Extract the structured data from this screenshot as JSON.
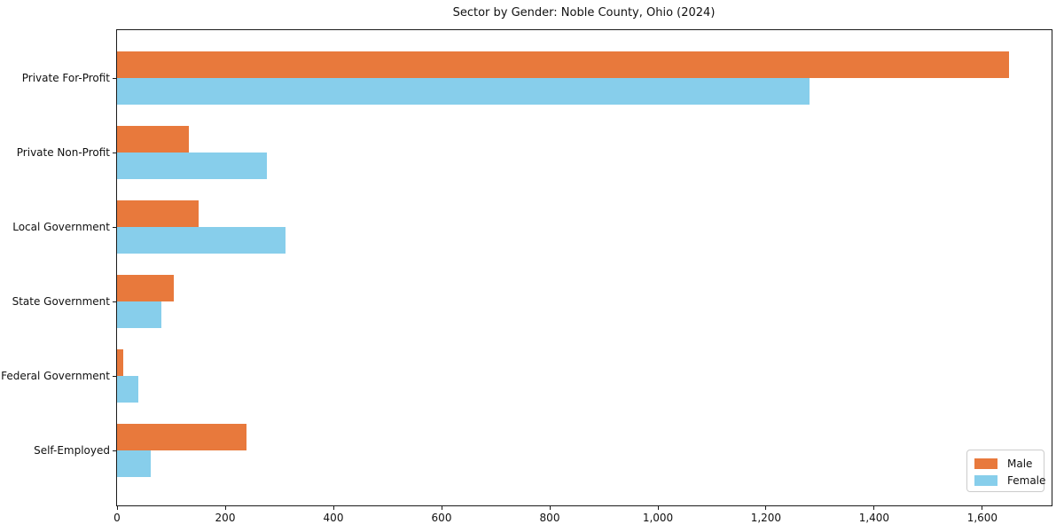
{
  "chart_data": {
    "type": "bar",
    "orientation": "horizontal",
    "title": "Sector by Gender: Noble County, Ohio (2024)",
    "categories": [
      "Private For-Profit",
      "Private Non-Profit",
      "Local Government",
      "State Government",
      "Federal Government",
      "Self-Employed"
    ],
    "series": [
      {
        "name": "Male",
        "color": "#e8793c",
        "values": [
          1650,
          133,
          150,
          105,
          12,
          240
        ]
      },
      {
        "name": "Female",
        "color": "#87ceeb",
        "values": [
          1280,
          277,
          311,
          82,
          40,
          62
        ]
      }
    ],
    "xlim": [
      0,
      1728
    ],
    "xticks": [
      0,
      200,
      400,
      600,
      800,
      1000,
      1200,
      1400,
      1600
    ],
    "xtick_labels": [
      "0",
      "200",
      "400",
      "600",
      "800",
      "1,000",
      "1,200",
      "1,400",
      "1,600"
    ],
    "xlabel": "",
    "ylabel": "",
    "grid": false,
    "legend_position": "lower right"
  },
  "legend": {
    "entries": [
      {
        "label": "Male"
      },
      {
        "label": "Female"
      }
    ]
  }
}
